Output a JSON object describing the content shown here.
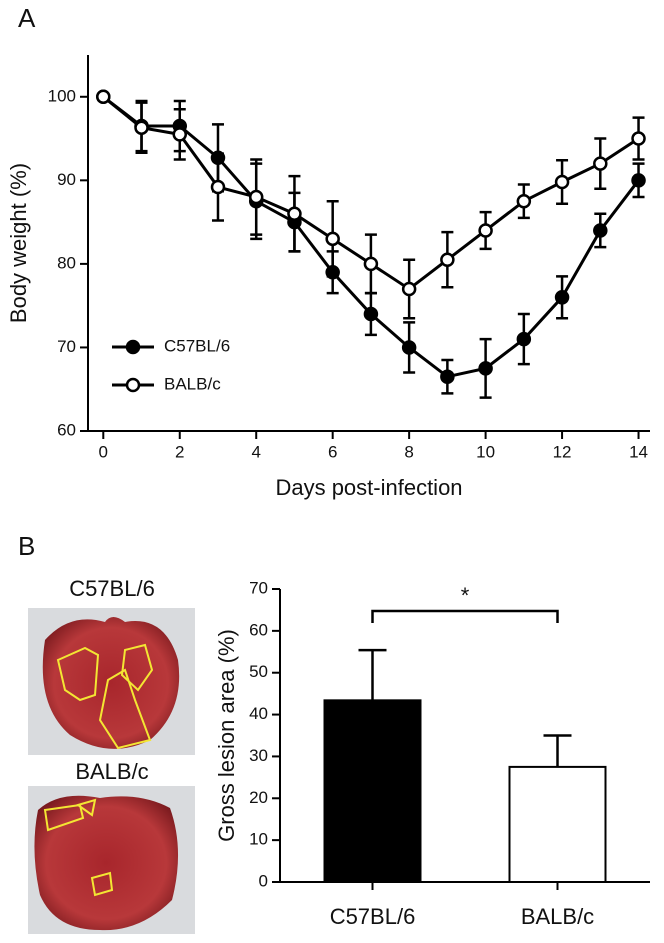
{
  "panels": [
    "A",
    "B"
  ],
  "photos": [
    {
      "label": "C57BL/6"
    },
    {
      "label": "BALB/c"
    }
  ],
  "chart_data": [
    {
      "type": "line",
      "xlabel": "Days post-infection",
      "ylabel": "Body weight (%)",
      "x": [
        0,
        1,
        2,
        3,
        4,
        5,
        6,
        7,
        8,
        9,
        10,
        11,
        12,
        13,
        14
      ],
      "xlim": [
        -0.4,
        14.3
      ],
      "xticks": [
        0,
        2,
        4,
        6,
        8,
        10,
        12,
        14
      ],
      "ylim": [
        60,
        105
      ],
      "yticks": [
        60,
        70,
        80,
        90,
        100
      ],
      "legend": "lower left",
      "series": [
        {
          "name": "C57BL/6",
          "color": "#000000",
          "marker": "filled",
          "values": [
            100,
            96.5,
            96.5,
            92.7,
            87.5,
            85,
            79,
            74,
            70,
            66.5,
            67.5,
            71,
            76,
            84,
            90
          ],
          "errors": [
            0,
            3,
            3,
            4,
            4.5,
            3.5,
            2.5,
            2.5,
            3,
            2,
            3.5,
            3,
            2.5,
            2,
            2
          ]
        },
        {
          "name": "BALB/c",
          "color": "#000000",
          "marker": "open",
          "values": [
            100,
            96.3,
            95.5,
            89.2,
            88,
            86,
            83,
            80,
            77,
            80.5,
            84,
            87.5,
            89.8,
            92,
            95
          ],
          "errors": [
            0,
            3,
            3,
            4,
            4.5,
            4.5,
            4.5,
            3.5,
            3.5,
            3.3,
            2.2,
            2,
            2.6,
            3,
            2.5
          ]
        }
      ]
    },
    {
      "type": "bar",
      "ylabel": "Gross lesion area (%)",
      "categories": [
        "C57BL/6",
        "BALB/c"
      ],
      "values": [
        43.4,
        27.5
      ],
      "errors": [
        12,
        7.5
      ],
      "colors": [
        "#000000",
        "#ffffff"
      ],
      "ylim": [
        0,
        70
      ],
      "yticks": [
        0,
        10,
        20,
        30,
        40,
        50,
        60,
        70
      ],
      "annotation": "*"
    }
  ]
}
